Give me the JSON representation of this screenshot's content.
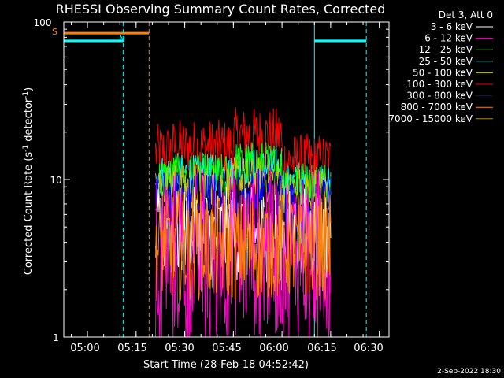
{
  "chart_data": {
    "type": "line",
    "title": "RHESSI Observing Summary Count Rates, Corrected",
    "xlabel": "Start Time (28-Feb-18 04:52:42)",
    "ylabel_main": "Corrected Count Rate (s",
    "ylabel_sup1": "-1",
    "ylabel_mid": " detector",
    "ylabel_sup2": "-1",
    "ylabel_end": ")",
    "yscale": "log",
    "ylim": [
      1,
      100
    ],
    "xlim": [
      "04:52:42",
      "06:33:00"
    ],
    "x_ticks": [
      "05:00",
      "05:15",
      "05:30",
      "05:45",
      "06:00",
      "06:15",
      "06:30"
    ],
    "y_ticks": [
      "1",
      "10",
      "100"
    ],
    "footer_date": "2-Sep-2022 18:30",
    "legend": {
      "header": "Det 3, Att 0",
      "placement": "top-right outside",
      "entries": [
        {
          "label": "3 - 6 keV",
          "color": "#ffffff"
        },
        {
          "label": "6 - 12 keV",
          "color": "#ff00cc"
        },
        {
          "label": "12 - 25 keV",
          "color": "#00ff00"
        },
        {
          "label": "25 - 50 keV",
          "color": "#00ffff"
        },
        {
          "label": "50 - 100 keV",
          "color": "#cccc00"
        },
        {
          "label": "100 - 300 keV",
          "color": "#ff0000"
        },
        {
          "label": "300 - 800 keV",
          "color": "#0000ff"
        },
        {
          "label": "800 - 7000 keV",
          "color": "#ff8000"
        },
        {
          "label": "7000 - 15000 keV",
          "color": "#aa8800"
        }
      ]
    },
    "flags": {
      "saa_label": "S",
      "night_label": "N",
      "saa_color": "#ff8000",
      "night_color": "#00ffff",
      "saa_interval": [
        "04:52:42",
        "05:19:00"
      ],
      "night_intervals": [
        [
          "04:52:42",
          "05:11:00"
        ],
        [
          "06:10:00",
          "06:26:00"
        ]
      ],
      "dashed_markers": [
        {
          "time": "05:11:00",
          "color": "#00ffff"
        },
        {
          "time": "05:19:00",
          "color": "#ff8000"
        },
        {
          "time": "06:26:00",
          "color": "#00ffff"
        }
      ],
      "solid_markers": [
        {
          "time": "04:52:42",
          "color": "#00ffff"
        },
        {
          "time": "06:10:00",
          "color": "#00ffff"
        }
      ]
    },
    "data_interval": [
      "05:21:00",
      "06:15:00"
    ],
    "series": [
      {
        "name": "100 - 300 keV",
        "color": "#ff0000",
        "mean_start": 15,
        "mean_mid": 16,
        "mean_peak": 19,
        "mean_end": 13,
        "spread": 0.18
      },
      {
        "name": "25 - 50 keV",
        "color": "#00ffff",
        "mean_start": 11,
        "mean_mid": 11,
        "mean_peak": 12,
        "mean_end": 9.5,
        "spread": 0.12
      },
      {
        "name": "12 - 25 keV",
        "color": "#00ff00",
        "mean_start": 10,
        "mean_mid": 10.5,
        "mean_peak": 12.5,
        "mean_end": 9.5,
        "spread": 0.15
      },
      {
        "name": "50 - 100 keV",
        "color": "#cccc00",
        "mean_start": 9,
        "mean_mid": 9,
        "mean_peak": 10,
        "mean_end": 8.5,
        "spread": 0.15
      },
      {
        "name": "300 - 800 keV",
        "color": "#0000ff",
        "mean_start": 7.5,
        "mean_mid": 7.5,
        "mean_peak": 8,
        "mean_end": 7,
        "spread": 0.18
      },
      {
        "name": "3 - 6 keV",
        "color": "#ffffff",
        "mean_start": 4.5,
        "mean_mid": 4.5,
        "mean_peak": 4.5,
        "mean_end": 4.5,
        "spread": 0.3
      },
      {
        "name": "6 - 12 keV",
        "color": "#ff00cc",
        "mean_start": 3.5,
        "mean_mid": 3.5,
        "mean_peak": 3.5,
        "mean_end": 3.5,
        "spread": 0.55
      },
      {
        "name": "800 - 7000 keV",
        "color": "#ff8000",
        "mean_start": 3.8,
        "mean_mid": 3.8,
        "mean_peak": 3.8,
        "mean_end": 3.8,
        "spread": 0.35
      }
    ]
  }
}
